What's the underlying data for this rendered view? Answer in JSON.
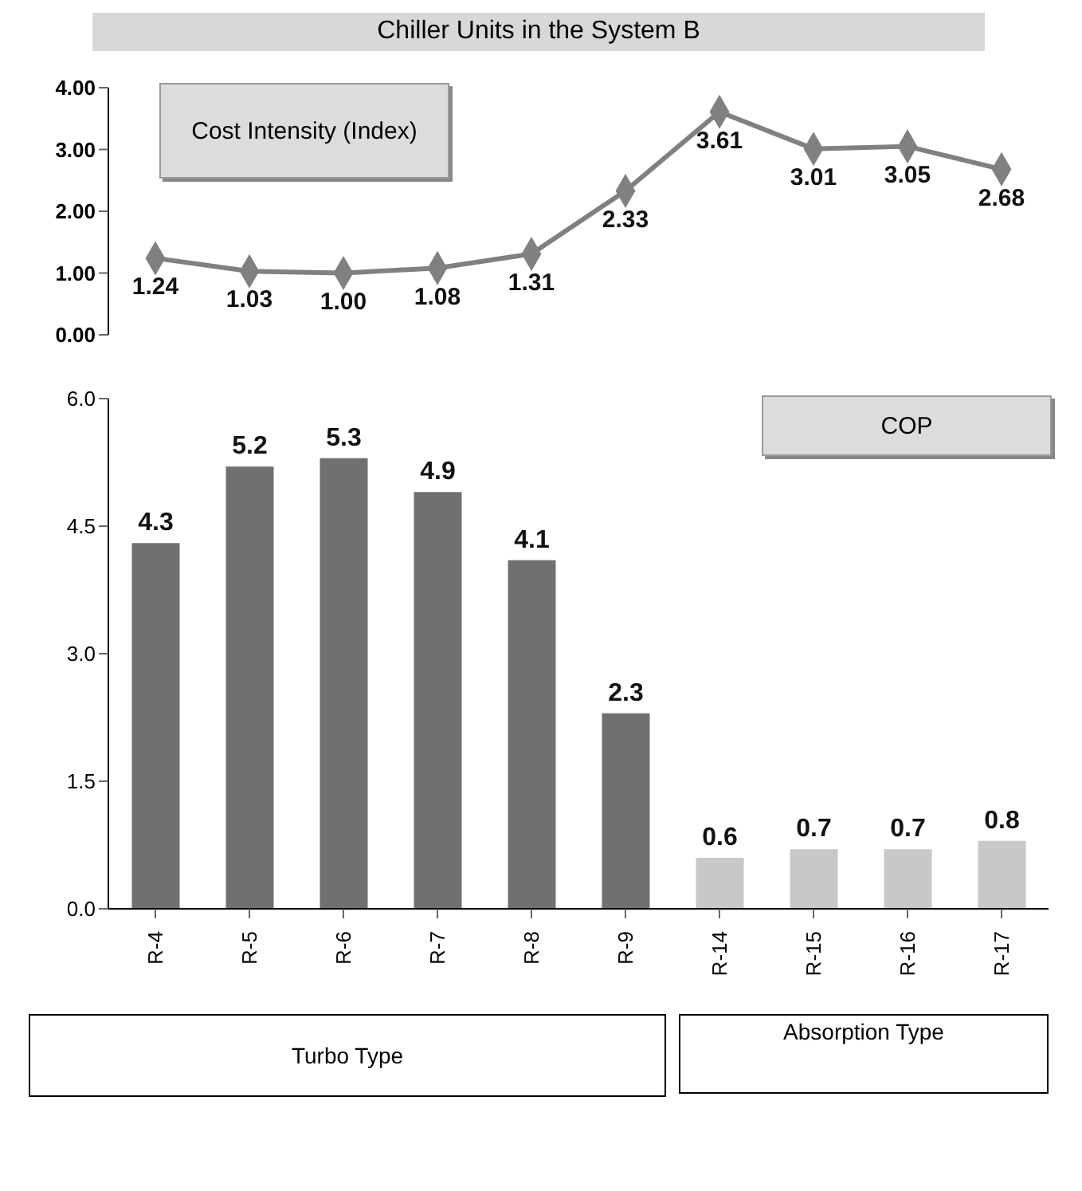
{
  "chart_data": [
    {
      "type": "line",
      "title": "Chiller Units in the System B",
      "ylabel": "Cost Intensity (Index)",
      "categories": [
        null,
        null,
        null,
        null,
        null,
        null,
        null,
        null,
        null,
        null
      ],
      "series": [
        {
          "color": "#808080",
          "values": [
            1.24,
            1.03,
            1.0,
            1.08,
            1.31,
            2.33,
            3.61,
            3.01,
            3.05,
            2.68
          ],
          "value_labels": [
            "1.24",
            "1.03",
            "1.00",
            "1.08",
            "1.31",
            "2.33",
            "3.61",
            "3.01",
            "3.05",
            "2.68"
          ]
        }
      ],
      "ylim": [
        0,
        4
      ],
      "yticks": [
        {
          "value": 0,
          "label": "0.00"
        },
        {
          "value": 1,
          "label": "1.00"
        },
        {
          "value": 2,
          "label": "2.00"
        },
        {
          "value": 3,
          "label": "3.00"
        },
        {
          "value": 4,
          "label": "4.00"
        }
      ],
      "tick_labels": "y",
      "marker": "diamond",
      "grid": false
    },
    {
      "type": "bar",
      "ylabel": "COP",
      "categories": [
        "R-4",
        "R-5",
        "R-6",
        "R-7",
        "R-8",
        "R-9",
        "R-14",
        "R-15",
        "R-16",
        "R-17"
      ],
      "values": [
        4.3,
        5.2,
        5.3,
        4.9,
        4.1,
        2.3,
        0.6,
        0.7,
        0.7,
        0.8
      ],
      "colors": [
        "#707070",
        "#707070",
        "#707070",
        "#707070",
        "#707070",
        "#707070",
        "#c8c8c8",
        "#c8c8c8",
        "#c8c8c8",
        "#c8c8c8"
      ],
      "ylim": [
        0,
        6
      ],
      "yticks": [
        {
          "value": 0,
          "label": "0.0"
        },
        {
          "value": 1.5,
          "label": "1.5"
        },
        {
          "value": 3,
          "label": "3.0"
        },
        {
          "value": 4.5,
          "label": "4.5"
        },
        {
          "value": 6,
          "label": "6.0"
        }
      ],
      "data_labels": true,
      "grid": false,
      "annotations": [
        "Turbo Type",
        "Absorption Type"
      ]
    }
  ]
}
